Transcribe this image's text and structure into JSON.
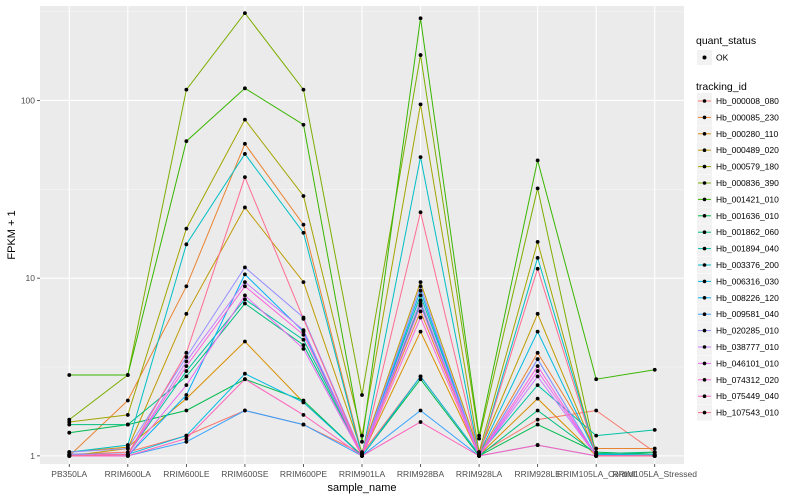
{
  "chart_data": {
    "type": "line",
    "xlabel": "sample_name",
    "ylabel": "FPKM + 1",
    "y_scale": "log10",
    "ylim": [
      0.9,
      340
    ],
    "y_ticks": [
      1,
      10,
      100
    ],
    "y_tick_labels": [
      "1",
      "10",
      "100"
    ],
    "grid": true,
    "categories": [
      "PB350LA",
      "RRIM600LA",
      "RRIM600LE",
      "RRIM600SE",
      "RRIM600PE",
      "RRIM901LA",
      "RRIM928BA",
      "RRIM928LA",
      "RRIM928LE",
      "RRIM105LA_Control",
      "RRIM105LA_Stressed"
    ],
    "legend_position": "right",
    "legend_shape": {
      "title": "quant_status",
      "entries": [
        {
          "label": "OK"
        }
      ]
    },
    "legend_color": {
      "title": "tracking_id"
    },
    "series": [
      {
        "name": "Hb_000008_080",
        "color": "#F8766D",
        "values": [
          1.02,
          1.05,
          1.3,
          1.8,
          1.5,
          1.03,
          2.8,
          1.02,
          1.6,
          1.8,
          1.05
        ]
      },
      {
        "name": "Hb_000085_230",
        "color": "#EA8331",
        "values": [
          1.0,
          2.05,
          9.0,
          57,
          20,
          1.02,
          6.5,
          1.02,
          3.8,
          1.1,
          1.1
        ]
      },
      {
        "name": "Hb_000280_110",
        "color": "#D89000",
        "values": [
          1.05,
          1.12,
          2.1,
          4.4,
          2.0,
          1.01,
          5.0,
          1.01,
          2.1,
          1.0,
          1.0
        ]
      },
      {
        "name": "Hb_000489_020",
        "color": "#C09B00",
        "values": [
          1.0,
          1.1,
          6.3,
          25,
          9.5,
          1.05,
          9.5,
          1.05,
          6.3,
          1.02,
          1.02
        ]
      },
      {
        "name": "Hb_000579_180",
        "color": "#A3A500",
        "values": [
          1.55,
          1.7,
          19,
          78,
          29,
          1.3,
          95,
          1.05,
          16,
          1.0,
          1.0
        ]
      },
      {
        "name": "Hb_000836_390",
        "color": "#7CAE00",
        "values": [
          1.6,
          2.85,
          115,
          310,
          115,
          2.2,
          180,
          1.25,
          32,
          1.0,
          1.05
        ]
      },
      {
        "name": "Hb_001421_010",
        "color": "#39B600",
        "values": [
          2.85,
          2.85,
          59,
          117,
          73,
          1.2,
          290,
          1.3,
          46,
          2.7,
          3.05
        ]
      },
      {
        "name": "Hb_001636_010",
        "color": "#00BB4E",
        "values": [
          1.35,
          1.5,
          1.8,
          2.7,
          2.05,
          1.0,
          2.7,
          1.0,
          1.5,
          1.05,
          1.02
        ]
      },
      {
        "name": "Hb_001862_060",
        "color": "#00BF7D",
        "values": [
          1.5,
          1.5,
          2.8,
          7.2,
          4.2,
          1.02,
          7.2,
          1.0,
          1.8,
          1.03,
          1.05
        ]
      },
      {
        "name": "Hb_001894_040",
        "color": "#00C1A3",
        "values": [
          1.02,
          1.02,
          3.0,
          7.6,
          4.5,
          1.02,
          8.0,
          1.02,
          2.5,
          1.3,
          1.4
        ]
      },
      {
        "name": "Hb_003376_200",
        "color": "#00BFC4",
        "values": [
          1.05,
          1.15,
          15.5,
          50,
          18,
          1.0,
          48,
          1.0,
          13,
          1.02,
          1.0
        ]
      },
      {
        "name": "Hb_006316_030",
        "color": "#00BAE0",
        "values": [
          1.02,
          1.02,
          1.3,
          2.9,
          2.0,
          1.0,
          2.8,
          1.02,
          5.0,
          1.02,
          1.02
        ]
      },
      {
        "name": "Hb_008226_120",
        "color": "#00B0F6",
        "values": [
          1.0,
          1.0,
          2.2,
          10.5,
          5.0,
          1.0,
          8.5,
          1.0,
          3.5,
          1.0,
          1.0
        ]
      },
      {
        "name": "Hb_009581_040",
        "color": "#35A2FF",
        "values": [
          1.0,
          1.0,
          1.2,
          1.8,
          1.5,
          1.0,
          1.8,
          1.0,
          1.15,
          1.0,
          1.0
        ]
      },
      {
        "name": "Hb_020285_010",
        "color": "#9590FF",
        "values": [
          1.05,
          1.1,
          3.6,
          11.5,
          6.0,
          1.02,
          9.0,
          1.0,
          3.5,
          1.0,
          1.0
        ]
      },
      {
        "name": "Hb_038777_010",
        "color": "#C77CFF",
        "values": [
          1.02,
          1.02,
          3.4,
          9.5,
          5.1,
          1.02,
          7.5,
          1.0,
          2.8,
          1.0,
          1.0
        ]
      },
      {
        "name": "Hb_046101_010",
        "color": "#E76BF3",
        "values": [
          1.0,
          1.0,
          2.5,
          8.0,
          4.0,
          1.0,
          7.0,
          1.0,
          3.0,
          1.0,
          1.0
        ]
      },
      {
        "name": "Hb_074312_020",
        "color": "#FA62DB",
        "values": [
          1.0,
          1.02,
          3.2,
          9.0,
          4.8,
          1.0,
          6.0,
          1.0,
          3.2,
          1.0,
          1.0
        ]
      },
      {
        "name": "Hb_075449_040",
        "color": "#FF62BC",
        "values": [
          1.0,
          1.0,
          1.25,
          2.7,
          1.7,
          1.0,
          1.55,
          1.0,
          1.15,
          1.0,
          1.0
        ]
      },
      {
        "name": "Hb_107543_010",
        "color": "#FF6C91",
        "values": [
          1.0,
          1.02,
          3.8,
          37,
          5.9,
          1.0,
          23.5,
          1.0,
          11.3,
          1.0,
          1.0
        ]
      }
    ]
  }
}
